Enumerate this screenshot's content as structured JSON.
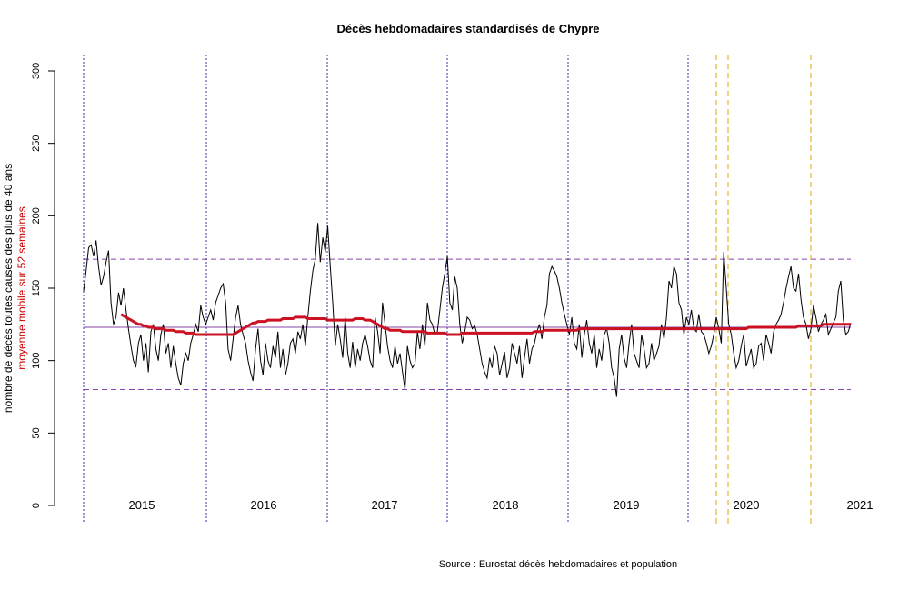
{
  "chart_data": {
    "type": "line",
    "title": "Décès hebdomadaires standardisés de Chypre",
    "ylabel": "nombre de décès toutes causes des plus de 40 ans",
    "ylabel_secondary": "moyenne mobile sur 52 semaines",
    "source": "Source : Eurostat décès hebdomadaires et population",
    "ylim": [
      0,
      300
    ],
    "yticks": [
      "0",
      "50",
      "100",
      "150",
      "200",
      "250",
      "300"
    ],
    "year_labels": [
      "2015",
      "2016",
      "2017",
      "2018",
      "2019",
      "2020",
      "2021"
    ],
    "grid": false,
    "reference_lines": {
      "mean": 123,
      "upper": 170,
      "lower": 80
    },
    "colors": {
      "weekly": "#000000",
      "moving_average": "#cc1122",
      "reference": "#8844aa",
      "year_separator": "#3333aa",
      "event_marker": "#ddaa00"
    },
    "series": [
      {
        "values": [
          148,
          162,
          178,
          180,
          172,
          183,
          165,
          152,
          158,
          168,
          176,
          140,
          125,
          130,
          147,
          138,
          150,
          135,
          122,
          110,
          100,
          96,
          112,
          118,
          100,
          112,
          92,
          120,
          125,
          108,
          100,
          118,
          125,
          105,
          112,
          95,
          110,
          98,
          88,
          83,
          98,
          105,
          100,
          112,
          118,
          125,
          120,
          138,
          130,
          125,
          130,
          135,
          128,
          140,
          145,
          150,
          153,
          140,
          108,
          100,
          115,
          130,
          138,
          125,
          118,
          112,
          100,
          92,
          86,
          108,
          122,
          100,
          90,
          112,
          100,
          95,
          110,
          102,
          120,
          95,
          108,
          90,
          98,
          112,
          115,
          105,
          120,
          115,
          125,
          110,
          130,
          148,
          162,
          170,
          195,
          168,
          185,
          175,
          193,
          165,
          140,
          110,
          125,
          115,
          102,
          130,
          105,
          95,
          113,
          95,
          108,
          100,
          112,
          118,
          110,
          100,
          95,
          130,
          120,
          105,
          140,
          125,
          110,
          100,
          95,
          110,
          98,
          105,
          92,
          80,
          110,
          100,
          95,
          98,
          120,
          108,
          125,
          110,
          140,
          128,
          125,
          118,
          120,
          135,
          150,
          160,
          172,
          140,
          135,
          158,
          150,
          125,
          112,
          120,
          130,
          128,
          122,
          124,
          118,
          108,
          98,
          92,
          88,
          102,
          95,
          110,
          105,
          90,
          98,
          106,
          88,
          95,
          112,
          105,
          98,
          110,
          88,
          102,
          115,
          98,
          108,
          112,
          120,
          125,
          115,
          130,
          138,
          160,
          165,
          162,
          158,
          150,
          140,
          132,
          125,
          118,
          130,
          112,
          108,
          125,
          102,
          118,
          128,
          112,
          105,
          118,
          95,
          108,
          100,
          118,
          122,
          112,
          95,
          88,
          75,
          108,
          118,
          102,
          95,
          112,
          125,
          105,
          100,
          95,
          118,
          108,
          95,
          98,
          112,
          100,
          105,
          110,
          125,
          115,
          130,
          155,
          150,
          165,
          160,
          140,
          135,
          118,
          130,
          125,
          135,
          122,
          120,
          132,
          120,
          118,
          112,
          105,
          110,
          118,
          130,
          122,
          112,
          175,
          150,
          125,
          118,
          105,
          95,
          100,
          110,
          118,
          96,
          102,
          108,
          95,
          98,
          110,
          112,
          100,
          118,
          112,
          105,
          120,
          125,
          128,
          132,
          140,
          150,
          158,
          165,
          150,
          148,
          160,
          142,
          130,
          125,
          115,
          122,
          138,
          130,
          120,
          125,
          128,
          132,
          118,
          122,
          126,
          130,
          148,
          155,
          128,
          118,
          120,
          126
        ]
      },
      {
        "values": [
          132,
          131,
          130,
          129,
          128,
          127,
          126,
          125,
          125,
          124,
          124,
          123,
          123,
          123,
          122,
          122,
          122,
          122,
          121,
          121,
          121,
          121,
          120,
          120,
          120,
          120,
          119,
          119,
          119,
          119,
          118,
          118,
          118,
          118,
          118,
          118,
          118,
          118,
          118,
          118,
          118,
          118,
          118,
          118,
          118,
          118,
          119,
          120,
          121,
          122,
          123,
          124,
          125,
          126,
          126,
          127,
          127,
          127,
          127,
          128,
          128,
          128,
          128,
          128,
          128,
          129,
          129,
          129,
          129,
          129,
          130,
          130,
          130,
          130,
          130,
          129,
          129,
          129,
          129,
          129,
          129,
          129,
          129,
          128,
          128,
          128,
          128,
          128,
          128,
          128,
          128,
          128,
          128,
          128,
          129,
          129,
          129,
          129,
          128,
          128,
          128,
          127,
          126,
          125,
          124,
          123,
          122,
          122,
          121,
          121,
          121,
          121,
          121,
          120,
          120,
          120,
          120,
          120,
          120,
          120,
          120,
          120,
          120,
          119,
          119,
          119,
          119,
          119,
          119,
          119,
          119,
          118,
          118,
          118,
          118,
          118,
          118,
          119,
          119,
          119,
          119,
          119,
          119,
          119,
          119,
          119,
          119,
          119,
          119,
          119,
          119,
          119,
          119,
          119,
          119,
          119,
          119,
          119,
          119,
          119,
          119,
          119,
          119,
          119,
          119,
          119,
          120,
          120,
          120,
          120,
          121,
          121,
          121,
          121,
          121,
          121,
          121,
          121,
          121,
          121,
          121,
          121,
          121,
          121,
          122,
          122,
          122,
          122,
          122,
          122,
          122,
          122,
          122,
          122,
          122,
          122,
          122,
          122,
          122,
          122,
          122,
          122,
          122,
          122,
          122,
          122,
          122,
          122,
          122,
          122,
          122,
          122,
          122,
          122,
          122,
          122,
          122,
          122,
          122,
          122,
          122,
          122,
          122,
          122,
          122,
          122,
          122,
          122,
          122,
          122,
          122,
          122,
          122,
          122,
          122,
          122,
          122,
          122,
          122,
          122,
          122,
          122,
          122,
          122,
          122,
          122,
          122,
          122,
          122,
          122,
          122,
          122,
          123,
          123,
          123,
          123,
          123,
          123,
          123,
          123,
          123,
          123,
          123,
          123,
          123,
          123,
          123,
          123,
          123,
          123,
          123,
          123,
          124,
          124,
          124,
          124,
          124,
          124,
          124,
          124,
          124,
          124,
          125,
          125,
          125,
          125,
          125,
          125,
          125,
          125,
          125,
          125,
          125,
          125
        ]
      }
    ]
  }
}
